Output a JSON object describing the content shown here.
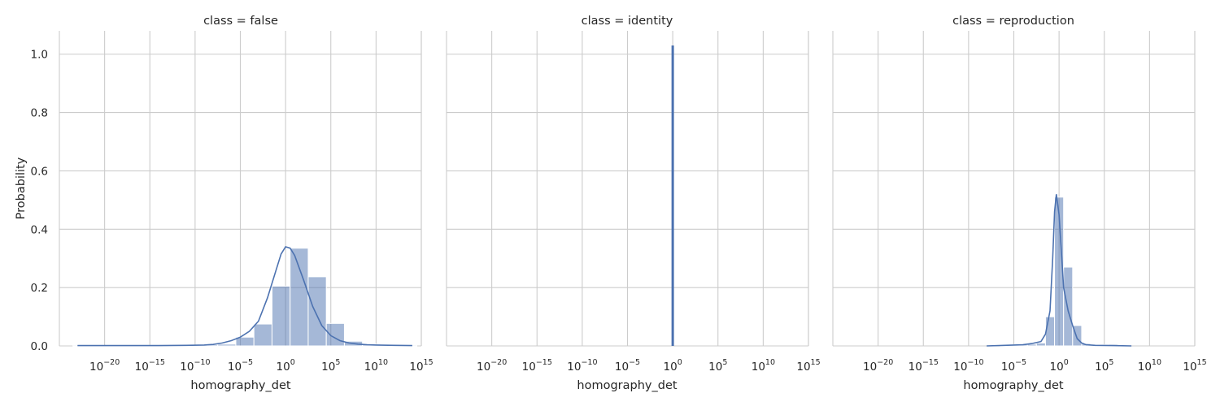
{
  "chart_data": [
    {
      "type": "bar",
      "title": "class = false",
      "xlabel": "homography_det",
      "ylabel": "Probability",
      "xscale": "log",
      "xlim_exponent": [
        -25,
        15
      ],
      "ylim": [
        0,
        1.08
      ],
      "x_tick_exponents": [
        -20,
        -15,
        -10,
        -5,
        0,
        5,
        10,
        15
      ],
      "y_ticks": [
        "0.0",
        "0.2",
        "0.4",
        "0.6",
        "0.8",
        "1.0"
      ],
      "grid": true,
      "bin_exponent_edges": [
        -23.5,
        -21.5,
        -19.5,
        -17.5,
        -15.5,
        -13.5,
        -11.5,
        -9.5,
        -7.5,
        -5.5,
        -3.5,
        -1.5,
        0.5,
        2.5,
        4.5,
        6.5,
        8.5,
        10.5,
        12.5,
        14.5
      ],
      "bin_values": [
        0.003,
        0.001,
        0.001,
        0.001,
        0.002,
        0.002,
        0.003,
        0.004,
        0.006,
        0.03,
        0.075,
        0.205,
        0.335,
        0.237,
        0.077,
        0.016,
        0.006,
        0.004,
        0.003
      ],
      "kde": {
        "x_exponent": [
          -23,
          -20,
          -17,
          -14,
          -11,
          -9,
          -8,
          -7,
          -6,
          -5,
          -4,
          -3,
          -2,
          -1,
          -0.5,
          0,
          0.5,
          1,
          2,
          3,
          4,
          5,
          6,
          7,
          8,
          9,
          10,
          12,
          14
        ],
        "y": [
          0.001,
          0.001,
          0.001,
          0.001,
          0.002,
          0.003,
          0.005,
          0.01,
          0.018,
          0.03,
          0.05,
          0.085,
          0.165,
          0.265,
          0.315,
          0.34,
          0.335,
          0.31,
          0.225,
          0.135,
          0.07,
          0.035,
          0.018,
          0.01,
          0.006,
          0.004,
          0.003,
          0.002,
          0.001
        ]
      }
    },
    {
      "type": "bar",
      "title": "class = identity",
      "xlabel": "homography_det",
      "xscale": "log",
      "xlim_exponent": [
        -25,
        15
      ],
      "ylim": [
        0,
        1.08
      ],
      "x_tick_exponents": [
        -20,
        -15,
        -10,
        -5,
        0,
        5,
        10,
        15
      ],
      "grid": true,
      "spike": {
        "x_exponent": 0,
        "value": 1.03
      }
    },
    {
      "type": "bar",
      "title": "class = reproduction",
      "xlabel": "homography_det",
      "xscale": "log",
      "xlim_exponent": [
        -25,
        15
      ],
      "ylim": [
        0,
        1.08
      ],
      "x_tick_exponents": [
        -20,
        -15,
        -10,
        -5,
        0,
        5,
        10,
        15
      ],
      "grid": true,
      "bin_exponent_edges": [
        -6.5,
        -5.5,
        -4.5,
        -3.5,
        -2.5,
        -1.5,
        -0.5,
        0.5,
        1.5,
        2.5,
        3.5,
        4.5,
        5.5,
        6.5,
        7.5
      ],
      "bin_values": [
        0.003,
        0.004,
        0.005,
        0.006,
        0.01,
        0.1,
        0.51,
        0.27,
        0.07,
        0.008,
        0.004,
        0.004,
        0.005,
        0.003
      ],
      "kde": {
        "x_exponent": [
          -8,
          -6,
          -4,
          -3,
          -2,
          -1.5,
          -1,
          -0.7,
          -0.5,
          -0.3,
          0,
          0.3,
          0.5,
          1,
          1.5,
          2,
          2.5,
          3,
          4,
          6,
          8
        ],
        "y": [
          0.0,
          0.002,
          0.004,
          0.008,
          0.015,
          0.04,
          0.12,
          0.3,
          0.46,
          0.52,
          0.45,
          0.3,
          0.2,
          0.12,
          0.07,
          0.025,
          0.01,
          0.004,
          0.002,
          0.001,
          0.0
        ]
      }
    }
  ]
}
